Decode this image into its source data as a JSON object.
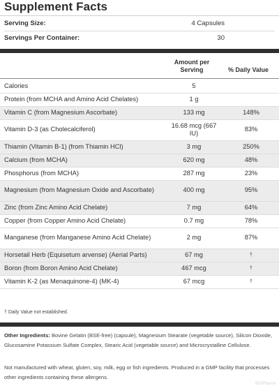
{
  "title": "Supplement Facts",
  "serving_size": {
    "label": "Serving Size:",
    "value": "4 Capsules"
  },
  "servings_per_container": {
    "label": "Servings Per Container:",
    "value": "30"
  },
  "header": {
    "amount": "Amount per Serving",
    "daily_value": "% Daily Value"
  },
  "rows": [
    {
      "name": "Calories",
      "amount": "5",
      "dv": ""
    },
    {
      "name": "Protein (from MCHA and Amino Acid Chelates)",
      "amount": "1 g",
      "dv": ""
    },
    {
      "name": "Vitamin C (from Magnesium Ascorbate)",
      "amount": "133 mg",
      "dv": "148%"
    },
    {
      "name": "Vitamin D-3 (as Cholecalciferol)",
      "amount": "16.68 mcg (667 IU)",
      "dv": "83%"
    },
    {
      "name": "Thiamin (Vitamin B-1) (from Thiamin HCl)",
      "amount": "3 mg",
      "dv": "250%"
    },
    {
      "name": "Calcium (from MCHA)",
      "amount": "620 mg",
      "dv": "48%"
    },
    {
      "name": "Phosphorus (from MCHA)",
      "amount": "287 mg",
      "dv": "23%"
    },
    {
      "name": "Magnesium (from Magnesium Oxide and Ascorbate)",
      "amount": "400 mg",
      "dv": "95%"
    },
    {
      "name": "Zinc (from Zinc Amino Acid Chelate)",
      "amount": "7 mg",
      "dv": "64%"
    },
    {
      "name": "Copper (from Copper Amino Acid Chelate)",
      "amount": "0.7 mg",
      "dv": "78%"
    },
    {
      "name": "Manganese (from Manganese Amino Acid Chelate)",
      "amount": "2 mg",
      "dv": "87%"
    },
    {
      "name": "Horsetail Herb (Equisetum arvense) (Aerial Parts)",
      "amount": "67 mg",
      "dv": "†"
    },
    {
      "name": "Boron (from Boron Amino Acid Chelate)",
      "amount": "467 mcg",
      "dv": "†"
    },
    {
      "name": "Vitamin K-2 (as Menaquinone-4) (MK-4)",
      "amount": "67 mcg",
      "dv": "†"
    }
  ],
  "footnote": "† Daily Value not established.",
  "other_ingredients": {
    "label": "Other Ingredients:",
    "text": " Bovine Gelatin (BSE-free) (capsule), Magnesium Stearate (vegetable source), Silicon Dioxide, Glucosamine Potassium Sulfate Complex, Stearic Acid (vegetable source) and Microcrystalline Cellulose."
  },
  "disclaimer": "Not manufactured with wheat, gluten, soy, milk, egg or fish ingredients. Produced in a GMP facility that processes other ingredients containing these allergens.",
  "watermark": "BGPharm"
}
